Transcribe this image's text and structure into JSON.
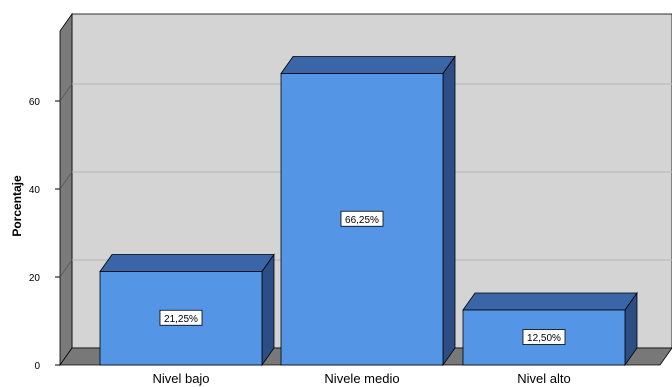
{
  "chart_data": {
    "type": "bar",
    "categories": [
      "Nivel bajo",
      "Nivele medio",
      "Nivel alto"
    ],
    "values": [
      21.25,
      66.25,
      12.5
    ],
    "data_labels": [
      "21,25%",
      "66,25%",
      "12,50%"
    ],
    "ylabel": "Porcentaje",
    "xlabel": "",
    "ylim": [
      0,
      72
    ],
    "yticks": [
      0,
      20,
      40,
      60
    ],
    "ytick_labels": [
      "0",
      "20",
      "40",
      "60"
    ],
    "grid": true,
    "three_d": true,
    "colors": {
      "bar_front": "#5595e6",
      "bar_side": "#2d4e84",
      "bar_top": "#3a66a8",
      "plot_background": "#d4d4d4",
      "floor": "#787878",
      "wall_side": "#7a7a7a",
      "gridline": "#b6b6b6"
    }
  }
}
